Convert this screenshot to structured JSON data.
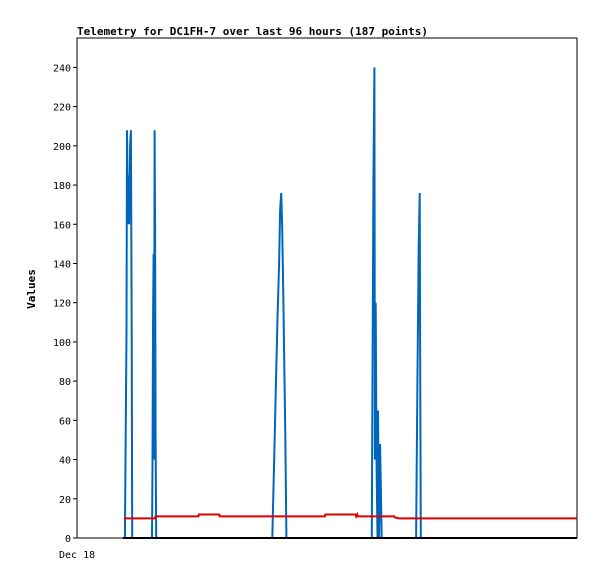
{
  "chart_data": {
    "type": "line",
    "title": "Telemetry for DC1FH-7 over last 96 hours (187 points)",
    "xlabel": "",
    "ylabel": "Values",
    "x_tick_labels": [
      "Dec 18"
    ],
    "xlim": [
      0,
      96
    ],
    "ylim": [
      0,
      255
    ],
    "y_ticks": [
      0,
      20,
      40,
      60,
      80,
      100,
      120,
      140,
      160,
      180,
      200,
      220,
      240
    ],
    "grid": false,
    "legend": "none",
    "series": [
      {
        "color": "#0066bb",
        "points": [
          [
            8.8,
            0
          ],
          [
            9.2,
            0
          ],
          [
            9.5,
            105
          ],
          [
            9.6,
            208
          ],
          [
            9.8,
            160
          ],
          [
            9.9,
            185
          ],
          [
            10.0,
            160
          ],
          [
            10.1,
            176
          ],
          [
            10.2,
            200
          ],
          [
            10.35,
            208
          ],
          [
            10.5,
            105
          ],
          [
            10.6,
            0
          ],
          [
            14.0,
            0
          ],
          [
            14.4,
            0
          ],
          [
            14.5,
            37
          ],
          [
            14.6,
            108
          ],
          [
            14.7,
            145
          ],
          [
            14.8,
            40
          ],
          [
            14.9,
            208
          ],
          [
            15.0,
            155
          ],
          [
            15.1,
            52
          ],
          [
            15.2,
            0
          ],
          [
            37.5,
            0
          ],
          [
            37.9,
            45
          ],
          [
            38.2,
            80
          ],
          [
            38.5,
            112
          ],
          [
            38.8,
            140
          ],
          [
            39.0,
            167
          ],
          [
            39.2,
            176
          ],
          [
            39.4,
            158
          ],
          [
            39.6,
            124
          ],
          [
            39.8,
            88
          ],
          [
            40.0,
            53
          ],
          [
            40.2,
            0
          ],
          [
            56.6,
            0
          ],
          [
            56.7,
            60
          ],
          [
            56.9,
            180
          ],
          [
            57.1,
            240
          ],
          [
            57.2,
            40
          ],
          [
            57.35,
            120
          ],
          [
            57.5,
            40
          ],
          [
            57.7,
            0
          ],
          [
            57.8,
            65
          ],
          [
            58.0,
            0
          ],
          [
            58.2,
            48
          ],
          [
            58.5,
            0
          ],
          [
            65.1,
            0
          ],
          [
            65.4,
            90
          ],
          [
            65.6,
            148
          ],
          [
            65.8,
            176
          ],
          [
            65.9,
            88
          ],
          [
            66.0,
            0
          ]
        ]
      },
      {
        "color": "#dd0000",
        "points": [
          [
            9.0,
            10
          ],
          [
            15.0,
            10
          ],
          [
            15.1,
            11
          ],
          [
            23.3,
            11
          ],
          [
            23.4,
            12
          ],
          [
            27.3,
            12
          ],
          [
            27.4,
            11
          ],
          [
            47.6,
            11
          ],
          [
            47.7,
            12
          ],
          [
            53.5,
            12
          ],
          [
            53.6,
            11
          ],
          [
            53.8,
            12
          ],
          [
            53.9,
            11
          ],
          [
            60.9,
            11
          ],
          [
            61.0,
            10.5
          ],
          [
            61.8,
            10
          ],
          [
            96.0,
            10
          ]
        ]
      },
      {
        "color": "#000000",
        "points": [
          [
            8.8,
            0
          ],
          [
            96.0,
            0
          ]
        ]
      }
    ]
  }
}
